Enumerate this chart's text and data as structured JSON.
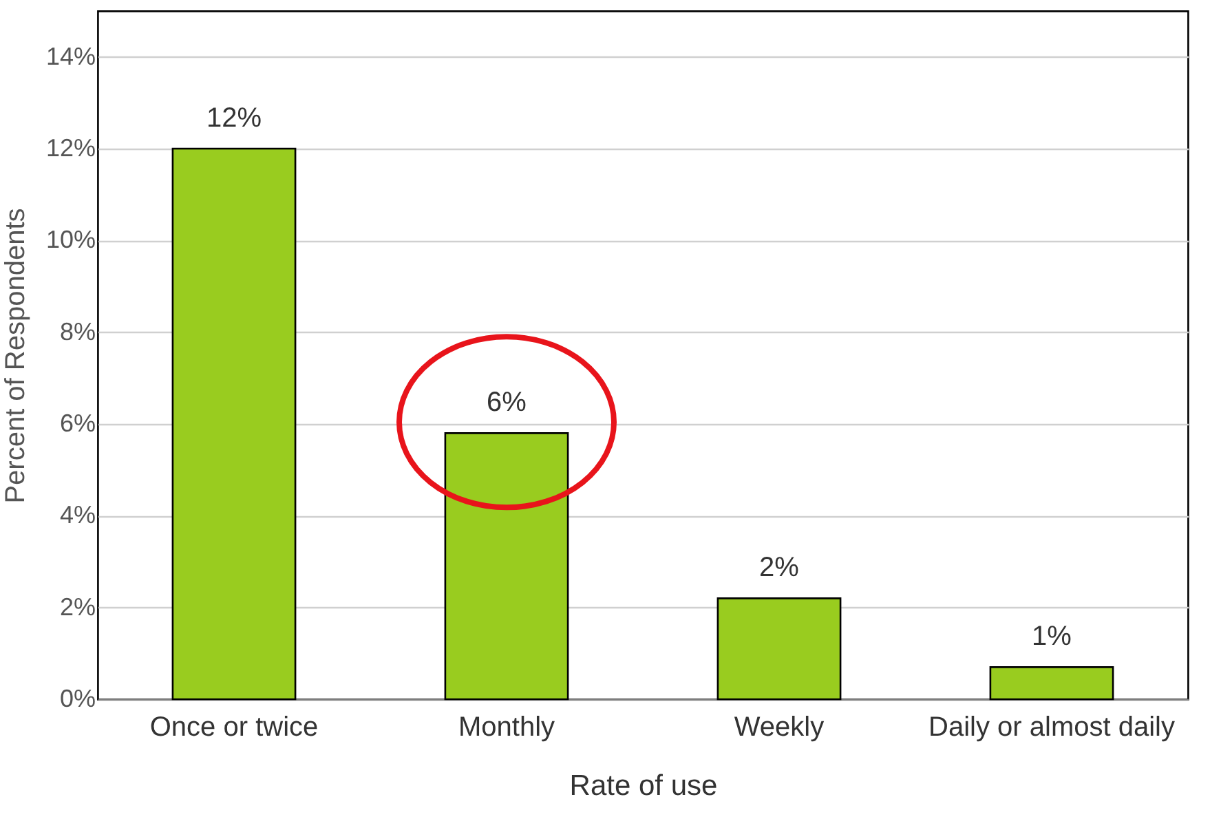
{
  "chart_data": {
    "type": "bar",
    "xlabel": "Rate of use",
    "ylabel": "Percent of Respondents",
    "categories": [
      "Once or twice",
      "Monthly",
      "Weekly",
      "Daily or almost daily"
    ],
    "values": [
      12.0,
      5.8,
      2.2,
      0.7
    ],
    "color": "#99cc1f",
    "value_labels": [
      "12%",
      "6%",
      "2%",
      "1%"
    ],
    "ylim": [
      0,
      15
    ],
    "yticks": [
      {
        "value": 0,
        "label": "0%"
      },
      {
        "value": 2,
        "label": "2%"
      },
      {
        "value": 4,
        "label": "4%"
      },
      {
        "value": 6,
        "label": "6%"
      },
      {
        "value": 8,
        "label": "8%"
      },
      {
        "value": 10,
        "label": "10%"
      },
      {
        "value": 12,
        "label": "12%"
      },
      {
        "value": 14,
        "label": "14%"
      }
    ],
    "grid": "y"
  }
}
